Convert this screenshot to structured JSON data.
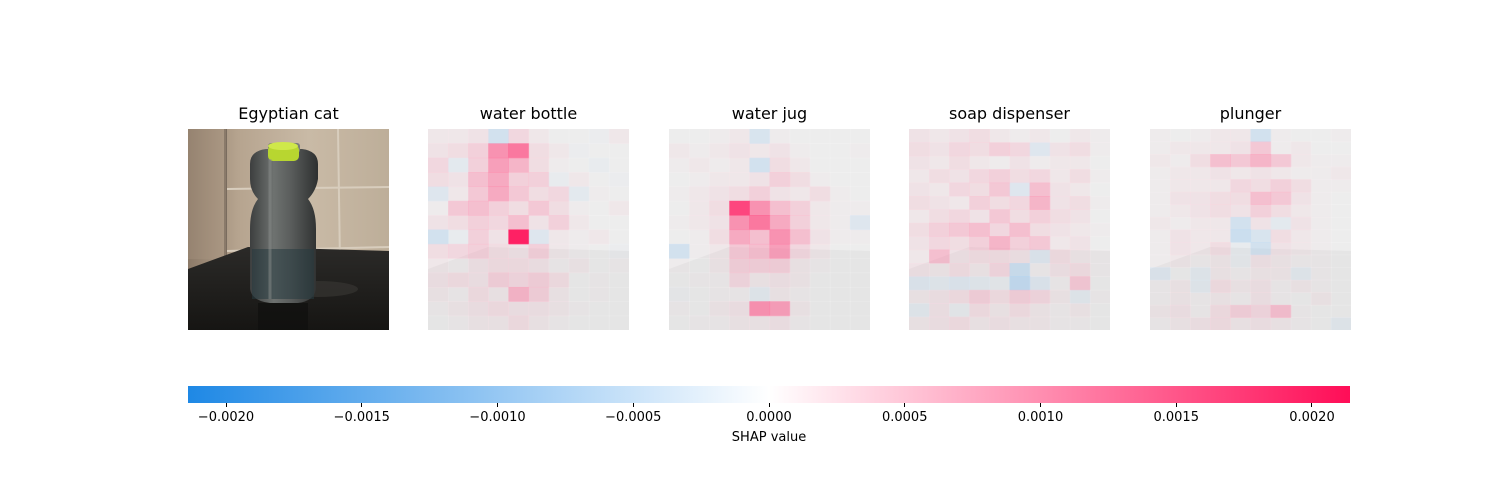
{
  "panels": [
    {
      "title": "Egyptian cat",
      "type": "input-image"
    },
    {
      "title": "water bottle",
      "type": "shap-map",
      "grid": [
        [
          0.1,
          0.1,
          0.15,
          -0.3,
          0.25,
          0.1,
          0,
          0,
          -0.05,
          0.1
        ],
        [
          0.15,
          0.2,
          0.3,
          0.6,
          0.7,
          0.2,
          0.1,
          -0.05,
          0,
          0
        ],
        [
          0.25,
          -0.15,
          0.3,
          0.55,
          0.45,
          0.2,
          0.05,
          0,
          -0.1,
          0
        ],
        [
          0.2,
          0.15,
          0.4,
          0.5,
          0.3,
          0.3,
          -0.1,
          0.1,
          0,
          -0.05
        ],
        [
          -0.2,
          0.1,
          0.35,
          0.5,
          0.35,
          0.2,
          0.25,
          -0.15,
          0.05,
          0
        ],
        [
          0.05,
          0.35,
          0.4,
          0.3,
          0.2,
          0.35,
          0.2,
          0.05,
          0,
          0.1
        ],
        [
          0.15,
          0.2,
          0.3,
          0.25,
          0.4,
          0.15,
          0.3,
          0.1,
          0,
          0
        ],
        [
          -0.3,
          -0.1,
          0.3,
          0.15,
          0.95,
          -0.2,
          0.1,
          0.05,
          0.1,
          0
        ],
        [
          0.2,
          0.25,
          0.3,
          0.2,
          0.15,
          0.3,
          0.1,
          0.05,
          0,
          -0.05
        ],
        [
          0.1,
          0.05,
          0.15,
          0.2,
          0.2,
          0.15,
          0.05,
          0.1,
          0,
          0.05
        ],
        [
          0.15,
          0.2,
          0.15,
          0.3,
          0.25,
          0.3,
          0.2,
          0,
          0.05,
          0
        ],
        [
          0.1,
          0.05,
          0.2,
          0.1,
          0.45,
          0.3,
          0.1,
          0,
          0.05,
          0
        ],
        [
          0.05,
          0.1,
          0.15,
          0.2,
          0.15,
          0.15,
          0.1,
          0.05,
          0,
          0
        ],
        [
          0,
          0.05,
          0.1,
          0.1,
          0.2,
          0.1,
          0.05,
          0,
          0,
          0
        ]
      ]
    },
    {
      "title": "water jug",
      "type": "shap-map",
      "grid": [
        [
          0,
          0,
          0.05,
          0.1,
          -0.25,
          0.05,
          0,
          0,
          0,
          0
        ],
        [
          0.1,
          0.05,
          0.1,
          0.15,
          0.1,
          0.15,
          0.05,
          0,
          0,
          0.05
        ],
        [
          0.05,
          0.1,
          0.05,
          0.1,
          -0.3,
          0.2,
          0.1,
          0,
          0,
          0
        ],
        [
          0,
          0.05,
          0.1,
          0.1,
          0.15,
          0.3,
          0.2,
          0.05,
          0,
          0
        ],
        [
          0.05,
          0.1,
          0.15,
          0.2,
          0.3,
          0.15,
          0.1,
          0.2,
          0.05,
          0
        ],
        [
          0,
          0.1,
          0.2,
          0.85,
          0.6,
          0.4,
          0.3,
          0.1,
          0.05,
          0.05
        ],
        [
          0.05,
          0.1,
          0.15,
          0.6,
          0.7,
          0.5,
          0.3,
          0.1,
          0.05,
          -0.2
        ],
        [
          0,
          0.05,
          0.2,
          0.5,
          0.4,
          0.6,
          0.4,
          0.15,
          0.05,
          0.05
        ],
        [
          -0.3,
          0.05,
          0.1,
          0.35,
          0.4,
          0.55,
          0.25,
          0.1,
          0,
          0
        ],
        [
          0.05,
          0,
          0.1,
          0.3,
          0.3,
          0.3,
          0.1,
          0.05,
          0,
          0
        ],
        [
          0,
          0.05,
          0.05,
          0.25,
          0.1,
          0.15,
          0.1,
          0,
          0,
          0
        ],
        [
          -0.05,
          0,
          0.05,
          0.05,
          -0.15,
          0.1,
          0.05,
          0,
          0,
          0
        ],
        [
          0.05,
          0,
          0.1,
          0.15,
          0.6,
          0.55,
          0.1,
          0,
          0,
          0
        ],
        [
          0,
          0.05,
          0.05,
          0.1,
          0.1,
          0.15,
          0.05,
          0,
          0,
          0
        ]
      ]
    },
    {
      "title": "soap dispenser",
      "type": "shap-map",
      "grid": [
        [
          0.15,
          0.1,
          0.15,
          0.2,
          0.1,
          0.05,
          0.1,
          0,
          0.1,
          0.05
        ],
        [
          0.2,
          0.15,
          0.25,
          0.2,
          0.3,
          0.25,
          -0.2,
          0.15,
          0.2,
          0.05
        ],
        [
          0.15,
          0.1,
          0.2,
          0.1,
          0.05,
          0.15,
          0.05,
          0.1,
          0.1,
          0
        ],
        [
          0.1,
          0.2,
          0.15,
          0.25,
          0.3,
          0.2,
          0.25,
          0.1,
          0.2,
          0.05
        ],
        [
          0.15,
          0.1,
          0.25,
          0.2,
          0.35,
          -0.2,
          0.4,
          0.15,
          0.1,
          0
        ],
        [
          0.2,
          0.15,
          0.1,
          0.3,
          0.2,
          0.25,
          0.45,
          0.15,
          0.2,
          0.05
        ],
        [
          0.1,
          0.2,
          0.25,
          0.15,
          0.35,
          0.2,
          0.3,
          0.2,
          0.15,
          0
        ],
        [
          0.2,
          0.3,
          0.35,
          0.4,
          0.25,
          0.4,
          0.2,
          0.15,
          0.1,
          0.05
        ],
        [
          0.15,
          0.25,
          0.2,
          0.3,
          0.45,
          0.3,
          0.35,
          0.1,
          0.15,
          0
        ],
        [
          0.1,
          0.4,
          0.15,
          0.2,
          0.2,
          0.15,
          -0.2,
          0.2,
          0.1,
          0.05
        ],
        [
          0.15,
          0.1,
          0.2,
          0.1,
          0.25,
          -0.35,
          0.05,
          0.15,
          0.2,
          0.05
        ],
        [
          -0.2,
          -0.15,
          -0.2,
          -0.15,
          -0.1,
          -0.4,
          -0.2,
          0.05,
          0.35,
          0
        ],
        [
          0.1,
          0.15,
          0.2,
          0.3,
          0.2,
          0.3,
          0.25,
          0.1,
          -0.15,
          0.05
        ],
        [
          -0.15,
          0.15,
          -0.1,
          0.2,
          0.1,
          0.2,
          0.1,
          0.05,
          0.1,
          0
        ],
        [
          0.1,
          0.15,
          0.2,
          0.1,
          0.15,
          0.1,
          0.1,
          0.05,
          0.05,
          0
        ]
      ]
    },
    {
      "title": "plunger",
      "type": "shap-map",
      "grid": [
        [
          0.05,
          0,
          0.05,
          0.1,
          0.1,
          -0.3,
          0.05,
          0,
          0,
          0.05
        ],
        [
          0.05,
          0.1,
          0.1,
          0.1,
          0.15,
          0.35,
          0.05,
          0.1,
          0,
          0
        ],
        [
          0.1,
          0.05,
          0.2,
          0.4,
          0.35,
          0.45,
          0.35,
          0.1,
          0.05,
          0.05
        ],
        [
          0.05,
          0.1,
          0.1,
          0.15,
          0.1,
          0.15,
          0.1,
          0.05,
          0.05,
          0.1
        ],
        [
          0.05,
          0.1,
          0.1,
          0.1,
          0.25,
          0.2,
          0.3,
          0.2,
          0.05,
          0.05
        ],
        [
          0.05,
          0.15,
          0.15,
          0.2,
          0.2,
          0.4,
          0.35,
          0.15,
          0.05,
          0
        ],
        [
          0.05,
          0.1,
          0.15,
          0.2,
          0.15,
          0.3,
          0.2,
          0.1,
          0.05,
          0
        ],
        [
          0.1,
          0.05,
          0.1,
          0.1,
          -0.3,
          0.15,
          -0.15,
          0.15,
          0.05,
          0
        ],
        [
          0.05,
          0.15,
          0.1,
          0.1,
          -0.35,
          -0.25,
          0.2,
          0.1,
          0.05,
          0
        ],
        [
          0.05,
          0.15,
          0.1,
          0.2,
          -0.1,
          -0.3,
          0.15,
          0.1,
          0.05,
          0
        ],
        [
          0.05,
          0.1,
          0.05,
          0.1,
          -0.1,
          0.15,
          0.1,
          0.05,
          0.05,
          0
        ],
        [
          -0.2,
          0,
          -0.15,
          0.1,
          0.05,
          0.1,
          0.1,
          -0.15,
          0.05,
          0
        ],
        [
          0.05,
          0.1,
          -0.15,
          0.2,
          0.1,
          0.15,
          0.05,
          0.1,
          0.05,
          0
        ],
        [
          0.05,
          0.1,
          0.05,
          0.1,
          0.05,
          0.15,
          0.05,
          0,
          0.1,
          0
        ],
        [
          0.1,
          0.15,
          0.05,
          0.2,
          0.3,
          0.25,
          0.4,
          0.05,
          0,
          0
        ],
        [
          0.05,
          0.1,
          0.15,
          0.2,
          0.1,
          0.15,
          0.1,
          0.05,
          0,
          -0.15
        ]
      ]
    }
  ],
  "colorbar": {
    "label": "SHAP value",
    "range": [
      -0.00214,
      0.00214
    ],
    "ticks": [
      {
        "value": -0.002,
        "label": "−0.0020"
      },
      {
        "value": -0.0015,
        "label": "−0.0015"
      },
      {
        "value": -0.001,
        "label": "−0.0010"
      },
      {
        "value": -0.0005,
        "label": "−0.0005"
      },
      {
        "value": 0,
        "label": "0.0000"
      },
      {
        "value": 0.0005,
        "label": "0.0005"
      },
      {
        "value": 0.001,
        "label": "0.0010"
      },
      {
        "value": 0.0015,
        "label": "0.0015"
      },
      {
        "value": 0.002,
        "label": "0.0020"
      }
    ],
    "colors": {
      "negative": "#1e88e5",
      "zero": "#ffffff",
      "positive": "#ff0d57"
    }
  },
  "chart_data": {
    "type": "heatmap",
    "categories": [
      "Egyptian cat",
      "water bottle",
      "water jug",
      "soap dispenser",
      "plunger"
    ],
    "colorbar_label": "SHAP value",
    "value_range": [
      -0.00214,
      0.00214
    ],
    "tick_values": [
      -0.002,
      -0.0015,
      -0.001,
      -0.0005,
      0,
      0.0005,
      0.001,
      0.0015,
      0.002
    ],
    "colormap": [
      "#1e88e5",
      "#ffffff",
      "#ff0d57"
    ]
  }
}
